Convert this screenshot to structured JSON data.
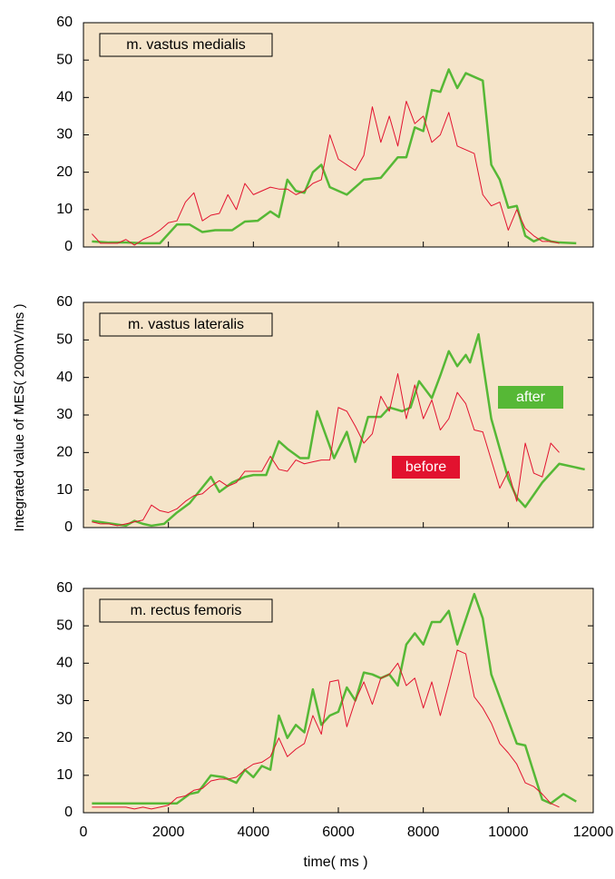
{
  "ylabel": "Integrated value of MES( 200mV/ms )",
  "xlabel": "time( ms )",
  "chart_data": [
    {
      "type": "line",
      "title": "m. vastus medialis",
      "background": "#f5e4c9",
      "xlim": [
        0,
        12000
      ],
      "xticks": [
        0,
        2000,
        4000,
        6000,
        8000,
        10000,
        12000
      ],
      "xtick_labels": false,
      "ylim": [
        0,
        60
      ],
      "yticks": [
        0,
        10,
        20,
        30,
        40,
        50,
        60
      ],
      "legend": false,
      "series": [
        {
          "name": "before",
          "color": "#e2122f",
          "x": [
            200,
            400,
            600,
            800,
            1000,
            1200,
            1400,
            1600,
            1800,
            2000,
            2200,
            2400,
            2600,
            2800,
            3000,
            3200,
            3400,
            3600,
            3800,
            4000,
            4200,
            4400,
            4600,
            4800,
            5000,
            5200,
            5400,
            5600,
            5800,
            6000,
            6200,
            6400,
            6600,
            6800,
            7000,
            7200,
            7400,
            7600,
            7800,
            8000,
            8200,
            8400,
            8600,
            8800,
            9000,
            9200,
            9400,
            9600,
            9800,
            10000,
            10200,
            10400,
            10600,
            10800,
            11000,
            11200
          ],
          "values": [
            3.5,
            1,
            1,
            1,
            2,
            0.5,
            2,
            3,
            4.5,
            6.5,
            7,
            12,
            14.5,
            7,
            8.5,
            9,
            14,
            10,
            17,
            14,
            15,
            16,
            15.5,
            15.5,
            14,
            15,
            17,
            18,
            30,
            23.5,
            22,
            20.5,
            24.5,
            37.5,
            28,
            35,
            27,
            39,
            33,
            35,
            28,
            30,
            36,
            27,
            26,
            25,
            14,
            11,
            12,
            4.5,
            10,
            5,
            3,
            1.5,
            1.5,
            1
          ]
        },
        {
          "name": "after",
          "color": "#56b836",
          "x": [
            200,
            600,
            1000,
            1400,
            1800,
            2200,
            2500,
            2800,
            3100,
            3500,
            3800,
            4100,
            4400,
            4600,
            4800,
            5000,
            5200,
            5400,
            5600,
            5800,
            6200,
            6600,
            7000,
            7400,
            7600,
            7800,
            8000,
            8200,
            8400,
            8600,
            8800,
            9000,
            9400,
            9600,
            9800,
            10000,
            10200,
            10400,
            10600,
            10800,
            11000,
            11200,
            11600
          ],
          "values": [
            1.5,
            1.2,
            1.2,
            1,
            1,
            6,
            6,
            4,
            4.5,
            4.5,
            6.8,
            7,
            9.5,
            8,
            18,
            15,
            14.5,
            20,
            22,
            16,
            14,
            18,
            18.5,
            24,
            24,
            32,
            31,
            42,
            41.5,
            47.5,
            42.5,
            46.5,
            44.5,
            22,
            18,
            10.5,
            11,
            3,
            1.5,
            2.5,
            1.5,
            1.2,
            1
          ]
        }
      ]
    },
    {
      "type": "line",
      "title": "m. vastus lateralis",
      "background": "#f5e4c9",
      "xlim": [
        0,
        12000
      ],
      "xticks": [
        0,
        2000,
        4000,
        6000,
        8000,
        10000,
        12000
      ],
      "xtick_labels": false,
      "ylim": [
        0,
        60
      ],
      "yticks": [
        0,
        10,
        20,
        30,
        40,
        50,
        60
      ],
      "legend": true,
      "series": [
        {
          "name": "before",
          "color": "#e2122f",
          "x": [
            200,
            400,
            600,
            800,
            1000,
            1200,
            1400,
            1600,
            1800,
            2000,
            2200,
            2400,
            2600,
            2800,
            3000,
            3200,
            3400,
            3600,
            3800,
            4000,
            4200,
            4400,
            4600,
            4800,
            5000,
            5200,
            5400,
            5600,
            5800,
            6000,
            6200,
            6400,
            6600,
            6800,
            7000,
            7200,
            7400,
            7600,
            7800,
            8000,
            8200,
            8400,
            8600,
            8800,
            9000,
            9200,
            9400,
            9600,
            9800,
            10000,
            10200,
            10400,
            10600,
            10800,
            11000,
            11200
          ],
          "values": [
            1.5,
            1,
            1,
            0.5,
            1,
            1.5,
            2,
            6,
            4.5,
            4,
            5,
            7,
            8.5,
            9,
            11,
            12.5,
            11,
            12,
            15,
            15,
            15,
            19,
            15.5,
            15,
            18,
            17,
            17.5,
            18,
            18,
            32,
            31,
            27,
            22.5,
            25,
            35,
            31,
            41,
            29,
            38,
            29,
            34,
            26,
            29,
            36,
            33,
            26,
            25.5,
            18,
            10.5,
            15,
            7,
            22.5,
            14.5,
            13.5,
            22.5,
            20
          ]
        },
        {
          "name": "after",
          "color": "#56b836",
          "x": [
            200,
            1000,
            1200,
            1400,
            1600,
            1900,
            2200,
            2500,
            3000,
            3200,
            3500,
            3800,
            4000,
            4300,
            4600,
            4800,
            5100,
            5300,
            5500,
            5900,
            6200,
            6400,
            6700,
            7000,
            7200,
            7500,
            7700,
            7900,
            8200,
            8400,
            8600,
            8800,
            9000,
            9100,
            9300,
            9600,
            10000,
            10200,
            10400,
            10800,
            11200,
            11800
          ],
          "values": [
            1.8,
            0.5,
            1.8,
            1,
            0.5,
            1,
            4,
            6.5,
            13.5,
            9.5,
            12,
            13.5,
            14,
            14,
            23,
            21,
            18.5,
            18.5,
            31,
            18.5,
            25.5,
            17.5,
            29.5,
            29.5,
            32,
            31,
            32,
            39,
            34.5,
            40.5,
            47,
            43,
            46,
            44,
            51.5,
            29,
            13,
            8,
            5.5,
            12,
            17,
            15.5
          ]
        }
      ]
    },
    {
      "type": "line",
      "title": "m. rectus femoris",
      "background": "#f5e4c9",
      "xlim": [
        0,
        12000
      ],
      "xticks": [
        0,
        2000,
        4000,
        6000,
        8000,
        10000,
        12000
      ],
      "xtick_labels": true,
      "ylim": [
        0,
        60
      ],
      "yticks": [
        0,
        10,
        20,
        30,
        40,
        50,
        60
      ],
      "legend": false,
      "series": [
        {
          "name": "before",
          "color": "#e2122f",
          "x": [
            200,
            400,
            600,
            800,
            1000,
            1200,
            1400,
            1600,
            1800,
            2000,
            2200,
            2400,
            2600,
            2800,
            3000,
            3200,
            3400,
            3600,
            3800,
            4000,
            4200,
            4400,
            4600,
            4800,
            5000,
            5200,
            5400,
            5600,
            5800,
            6000,
            6200,
            6400,
            6600,
            6800,
            7000,
            7200,
            7400,
            7600,
            7800,
            8000,
            8200,
            8400,
            8600,
            8800,
            9000,
            9200,
            9400,
            9600,
            9800,
            10000,
            10200,
            10400,
            10600,
            10800,
            11000,
            11200
          ],
          "values": [
            1.5,
            1.5,
            1.5,
            1.5,
            1.5,
            1,
            1.5,
            1,
            1.5,
            2,
            4,
            4.5,
            6,
            6.5,
            8.5,
            9,
            9,
            9.5,
            11.5,
            13,
            13.5,
            15,
            20,
            15,
            17,
            18.5,
            26,
            21,
            35,
            35.5,
            23,
            30,
            35,
            29,
            36,
            37,
            40,
            34,
            36,
            28,
            35,
            26,
            34.5,
            43.5,
            42.5,
            31,
            28,
            24,
            18.5,
            16,
            13,
            8,
            7,
            5,
            2.5,
            1.5
          ]
        },
        {
          "name": "after",
          "color": "#56b836",
          "x": [
            200,
            1200,
            2000,
            2200,
            2500,
            2700,
            3000,
            3300,
            3600,
            3800,
            4000,
            4200,
            4400,
            4600,
            4800,
            5000,
            5200,
            5400,
            5600,
            5800,
            6000,
            6200,
            6400,
            6600,
            6800,
            7000,
            7200,
            7400,
            7600,
            7800,
            8000,
            8200,
            8400,
            8600,
            8800,
            9200,
            9400,
            9600,
            10200,
            10400,
            10800,
            11000,
            11300,
            11600
          ],
          "values": [
            2.5,
            2.5,
            2.5,
            2.5,
            5,
            5.5,
            10,
            9.5,
            8,
            11.5,
            9.5,
            12.5,
            11.5,
            26,
            20,
            23.5,
            21.5,
            33,
            23.5,
            26,
            27,
            33.5,
            30,
            37.5,
            37,
            36,
            37,
            34,
            45,
            48,
            45,
            51,
            51,
            54,
            45,
            58.5,
            52,
            37,
            18.5,
            18,
            3.5,
            2.5,
            5,
            3
          ]
        }
      ]
    }
  ]
}
